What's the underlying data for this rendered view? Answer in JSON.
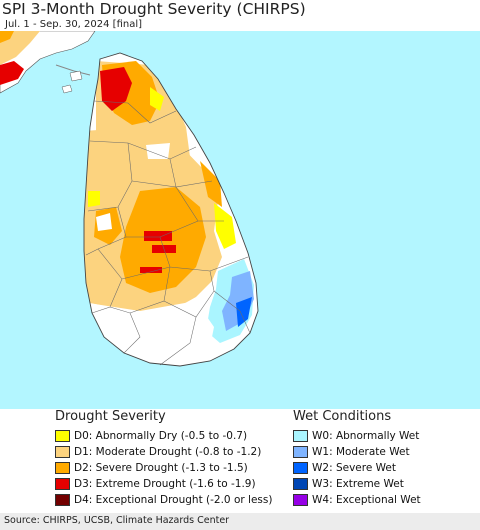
{
  "header": {
    "title": "SPI 3-Month Drought Severity (CHIRPS)",
    "subtitle": "Jul. 1 - Sep. 30, 2024 [final]"
  },
  "map": {
    "ocean_color": "#b3f6ff",
    "land_color": "#ffffff",
    "boundary_color": "#555555"
  },
  "legend": {
    "drought": {
      "heading": "Drought Severity",
      "items": [
        {
          "code": "D0",
          "label": "D0: Abnormally Dry (-0.5 to -0.7)",
          "color": "#ffff00"
        },
        {
          "code": "D1",
          "label": "D1: Moderate Drought (-0.8 to -1.2)",
          "color": "#fcd37f"
        },
        {
          "code": "D2",
          "label": "D2: Severe Drought (-1.3 to -1.5)",
          "color": "#ffaa00"
        },
        {
          "code": "D3",
          "label": "D3: Extreme Drought (-1.6 to -1.9)",
          "color": "#e60000"
        },
        {
          "code": "D4",
          "label": "D4: Exceptional Drought (-2.0 or less)",
          "color": "#730000"
        }
      ]
    },
    "wet": {
      "heading": "Wet Conditions",
      "items": [
        {
          "code": "W0",
          "label": "W0: Abnormally Wet",
          "color": "#aaf5ff"
        },
        {
          "code": "W1",
          "label": "W1: Moderate Wet",
          "color": "#7fb4ff"
        },
        {
          "code": "W2",
          "label": "W2: Severe Wet",
          "color": "#0064ff"
        },
        {
          "code": "W3",
          "label": "W3: Extreme Wet",
          "color": "#0046b4"
        },
        {
          "code": "W4",
          "label": "W4: Exceptional Wet",
          "color": "#9600e6"
        }
      ]
    }
  },
  "footer": {
    "source": "Source: CHIRPS, UCSB, Climate Hazards Center"
  }
}
